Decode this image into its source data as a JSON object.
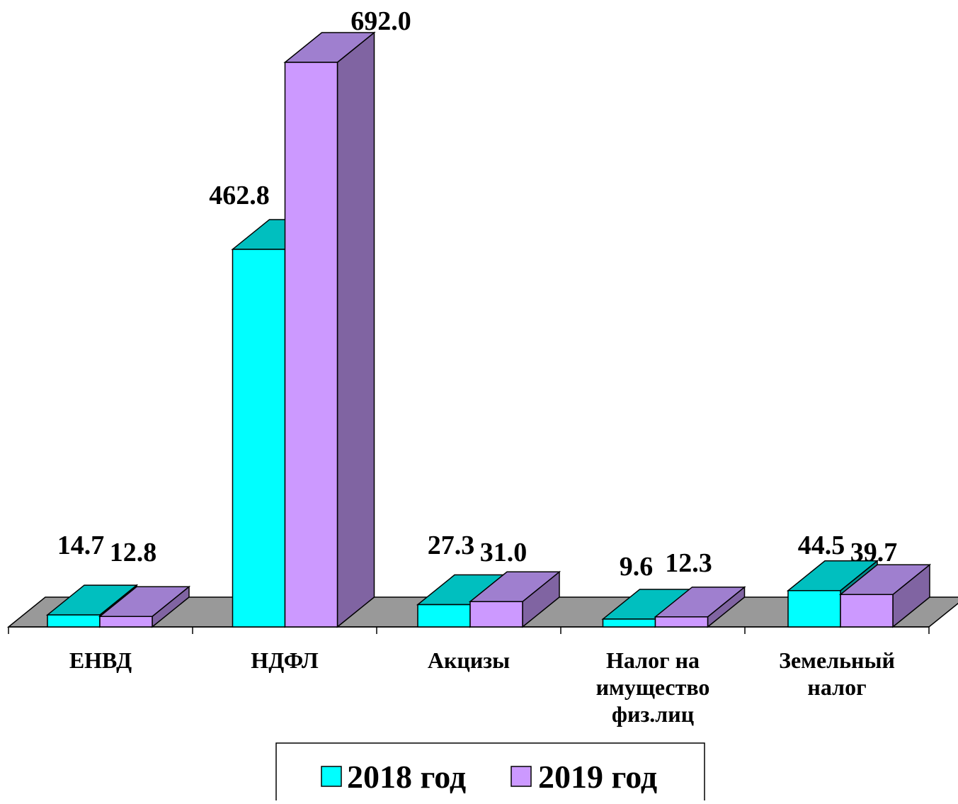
{
  "chart_data": {
    "type": "bar",
    "style": "3d-clustered-column",
    "categories": [
      [
        "ЕНВД"
      ],
      [
        "НДФЛ"
      ],
      [
        "Акцизы"
      ],
      [
        "Налог на",
        "имущество",
        "физ.лиц"
      ],
      [
        "Земельный",
        "налог"
      ]
    ],
    "series": [
      {
        "name": "2018 год",
        "values": [
          14.7,
          462.8,
          27.3,
          9.6,
          44.5
        ],
        "labels": [
          "14.7",
          "462.8",
          "27.3",
          "9.6",
          "44.5"
        ],
        "color": "#00FFFF",
        "top_color": "#00BFBF"
      },
      {
        "name": "2019 год",
        "values": [
          12.8,
          692.0,
          31.0,
          12.3,
          39.7
        ],
        "labels": [
          "12.8",
          "692.0",
          "31.0",
          "12.3",
          "39.7"
        ],
        "color": "#CC99FF",
        "top_color": "#9F7FCF",
        "side_color": "#8064A2"
      }
    ],
    "floor_color": "#999999",
    "legend_position": "bottom",
    "gridlines": false,
    "ylim": [
      0,
      692
    ]
  }
}
